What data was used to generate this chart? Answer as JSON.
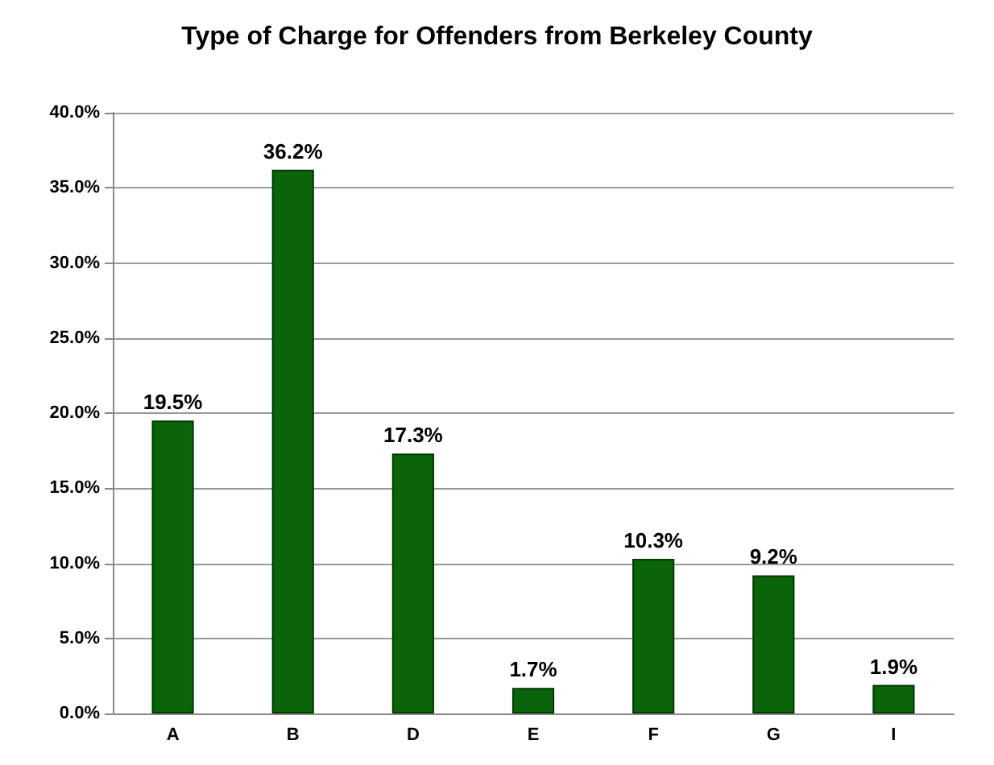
{
  "chart_data": {
    "type": "bar",
    "title": "Type of Charge for Offenders from Berkeley County",
    "categories": [
      "A",
      "B",
      "D",
      "E",
      "F",
      "G",
      "I"
    ],
    "values": [
      19.5,
      36.2,
      17.3,
      1.7,
      10.3,
      9.2,
      1.9
    ],
    "value_labels": [
      "19.5%",
      "36.2%",
      "17.3%",
      "1.7%",
      "10.3%",
      "9.2%",
      "1.9%"
    ],
    "color": "#0a640a",
    "ylim": [
      0,
      40
    ],
    "yticks": [
      {
        "value": 0,
        "label": "0.0%"
      },
      {
        "value": 5,
        "label": "5.0%"
      },
      {
        "value": 10,
        "label": "10.0%"
      },
      {
        "value": 15,
        "label": "15.0%"
      },
      {
        "value": 20,
        "label": "20.0%"
      },
      {
        "value": 25,
        "label": "25.0%"
      },
      {
        "value": 30,
        "label": "30.0%"
      },
      {
        "value": 35,
        "label": "35.0%"
      },
      {
        "value": 40,
        "label": "40.0%"
      }
    ],
    "grid": "y"
  }
}
